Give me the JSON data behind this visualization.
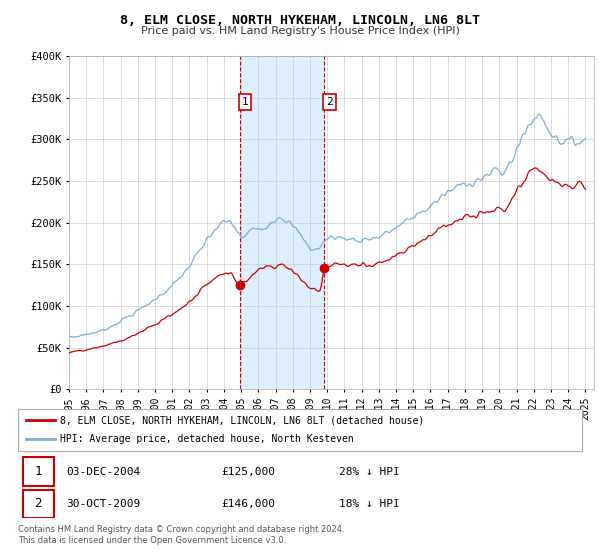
{
  "title": "8, ELM CLOSE, NORTH HYKEHAM, LINCOLN, LN6 8LT",
  "subtitle": "Price paid vs. HM Land Registry's House Price Index (HPI)",
  "legend_line1": "8, ELM CLOSE, NORTH HYKEHAM, LINCOLN, LN6 8LT (detached house)",
  "legend_line2": "HPI: Average price, detached house, North Kesteven",
  "table_rows": [
    {
      "num": "1",
      "date": "03-DEC-2004",
      "price": "£125,000",
      "hpi": "28% ↓ HPI"
    },
    {
      "num": "2",
      "date": "30-OCT-2009",
      "price": "£146,000",
      "hpi": "18% ↓ HPI"
    }
  ],
  "footer": "Contains HM Land Registry data © Crown copyright and database right 2024.\nThis data is licensed under the Open Government Licence v3.0.",
  "sale1_x": 2004.92,
  "sale1_y": 125000,
  "sale2_x": 2009.83,
  "sale2_y": 146000,
  "vline1_x": 2004.92,
  "vline2_x": 2009.83,
  "shade_xmin": 2004.92,
  "shade_xmax": 2009.83,
  "ylim": [
    0,
    400000
  ],
  "xlim_start": 1995.0,
  "xlim_end": 2025.5,
  "price_line_color": "#cc0000",
  "hpi_line_color": "#7aaddc",
  "shade_color": "#ddeeff",
  "vline_color": "#cc0000",
  "background_color": "#ffffff"
}
